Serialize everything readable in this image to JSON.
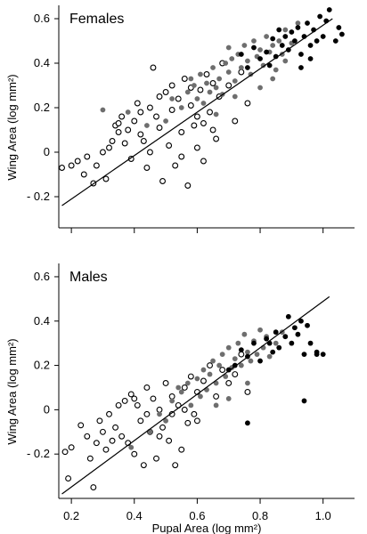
{
  "chart_data": [
    {
      "type": "scatter",
      "title": "Females",
      "ylabel": "Wing Area (log mm²)",
      "xlim": [
        0.16,
        1.1
      ],
      "ylim": [
        -0.34,
        0.66
      ],
      "x_ticks": [
        0.2,
        0.4,
        0.6,
        0.8,
        1.0
      ],
      "x_tick_labels": [
        "",
        "",
        "",
        "",
        ""
      ],
      "y_ticks": [
        -0.2,
        0,
        0.2,
        0.4,
        0.6
      ],
      "y_tick_labels": [
        "- 0.2",
        "0",
        "0.2",
        "0.4",
        "0.6"
      ],
      "grid": false,
      "fit_line": {
        "x": [
          0.17,
          1.03
        ],
        "y": [
          -0.24,
          0.6
        ]
      },
      "series": [
        {
          "marker": "open-circle",
          "color": "#000000",
          "points": [
            [
              0.17,
              -0.07
            ],
            [
              0.2,
              -0.06
            ],
            [
              0.22,
              -0.04
            ],
            [
              0.24,
              -0.1
            ],
            [
              0.25,
              -0.02
            ],
            [
              0.27,
              -0.14
            ],
            [
              0.28,
              -0.06
            ],
            [
              0.3,
              0.0
            ],
            [
              0.31,
              -0.12
            ],
            [
              0.32,
              0.02
            ],
            [
              0.33,
              0.05
            ],
            [
              0.34,
              0.12
            ],
            [
              0.35,
              0.09
            ],
            [
              0.36,
              0.16
            ],
            [
              0.37,
              0.04
            ],
            [
              0.38,
              0.1
            ],
            [
              0.39,
              -0.03
            ],
            [
              0.4,
              0.14
            ],
            [
              0.41,
              0.22
            ],
            [
              0.42,
              0.08
            ],
            [
              0.43,
              0.05
            ],
            [
              0.44,
              -0.07
            ],
            [
              0.45,
              0.2
            ],
            [
              0.46,
              0.38
            ],
            [
              0.47,
              0.16
            ],
            [
              0.48,
              0.11
            ],
            [
              0.49,
              -0.13
            ],
            [
              0.5,
              0.27
            ],
            [
              0.51,
              0.03
            ],
            [
              0.52,
              0.19
            ],
            [
              0.53,
              -0.06
            ],
            [
              0.54,
              0.24
            ],
            [
              0.55,
              0.09
            ],
            [
              0.56,
              0.33
            ],
            [
              0.57,
              -0.15
            ],
            [
              0.58,
              0.21
            ],
            [
              0.59,
              0.12
            ],
            [
              0.6,
              0.02
            ],
            [
              0.61,
              0.28
            ],
            [
              0.62,
              -0.04
            ],
            [
              0.63,
              0.35
            ],
            [
              0.64,
              0.18
            ],
            [
              0.65,
              0.1
            ],
            [
              0.66,
              0.06
            ],
            [
              0.67,
              0.25
            ],
            [
              0.68,
              0.4
            ],
            [
              0.7,
              0.3
            ],
            [
              0.72,
              0.14
            ],
            [
              0.74,
              0.36
            ],
            [
              0.76,
              0.22
            ],
            [
              0.45,
              0.0
            ],
            [
              0.48,
              0.25
            ],
            [
              0.52,
              0.3
            ],
            [
              0.55,
              -0.02
            ],
            [
              0.58,
              0.29
            ],
            [
              0.6,
              0.16
            ],
            [
              0.62,
              0.13
            ],
            [
              0.65,
              0.31
            ],
            [
              0.35,
              0.13
            ],
            [
              0.42,
              0.18
            ]
          ]
        },
        {
          "marker": "filled-circle",
          "color": "#6e6e6e",
          "points": [
            [
              0.3,
              0.19
            ],
            [
              0.38,
              0.18
            ],
            [
              0.44,
              0.12
            ],
            [
              0.5,
              0.14
            ],
            [
              0.52,
              0.24
            ],
            [
              0.55,
              0.2
            ],
            [
              0.57,
              0.27
            ],
            [
              0.59,
              0.3
            ],
            [
              0.6,
              0.24
            ],
            [
              0.61,
              0.35
            ],
            [
              0.62,
              0.22
            ],
            [
              0.63,
              0.31
            ],
            [
              0.64,
              0.27
            ],
            [
              0.65,
              0.38
            ],
            [
              0.66,
              0.29
            ],
            [
              0.67,
              0.33
            ],
            [
              0.68,
              0.26
            ],
            [
              0.69,
              0.4
            ],
            [
              0.7,
              0.36
            ],
            [
              0.71,
              0.42
            ],
            [
              0.72,
              0.32
            ],
            [
              0.73,
              0.44
            ],
            [
              0.74,
              0.38
            ],
            [
              0.75,
              0.48
            ],
            [
              0.76,
              0.41
            ],
            [
              0.77,
              0.35
            ],
            [
              0.78,
              0.5
            ],
            [
              0.79,
              0.43
            ],
            [
              0.8,
              0.46
            ],
            [
              0.81,
              0.39
            ],
            [
              0.82,
              0.52
            ],
            [
              0.83,
              0.45
            ],
            [
              0.84,
              0.48
            ],
            [
              0.85,
              0.37
            ],
            [
              0.86,
              0.5
            ],
            [
              0.87,
              0.44
            ],
            [
              0.88,
              0.55
            ],
            [
              0.9,
              0.49
            ],
            [
              0.92,
              0.58
            ],
            [
              0.8,
              0.29
            ],
            [
              0.72,
              0.25
            ],
            [
              0.66,
              0.17
            ],
            [
              0.84,
              0.33
            ],
            [
              0.88,
              0.41
            ],
            [
              0.7,
              0.47
            ],
            [
              0.58,
              0.33
            ]
          ]
        },
        {
          "marker": "filled-circle",
          "color": "#000000",
          "points": [
            [
              0.74,
              0.44
            ],
            [
              0.76,
              0.38
            ],
            [
              0.78,
              0.47
            ],
            [
              0.8,
              0.42
            ],
            [
              0.82,
              0.45
            ],
            [
              0.84,
              0.51
            ],
            [
              0.85,
              0.43
            ],
            [
              0.86,
              0.55
            ],
            [
              0.87,
              0.48
            ],
            [
              0.88,
              0.52
            ],
            [
              0.89,
              0.46
            ],
            [
              0.9,
              0.54
            ],
            [
              0.91,
              0.5
            ],
            [
              0.92,
              0.56
            ],
            [
              0.93,
              0.44
            ],
            [
              0.94,
              0.52
            ],
            [
              0.95,
              0.58
            ],
            [
              0.96,
              0.48
            ],
            [
              0.97,
              0.55
            ],
            [
              0.98,
              0.5
            ],
            [
              0.99,
              0.61
            ],
            [
              1.0,
              0.52
            ],
            [
              1.02,
              0.64
            ],
            [
              1.04,
              0.5
            ],
            [
              1.05,
              0.56
            ],
            [
              1.06,
              0.53
            ],
            [
              0.93,
              0.38
            ],
            [
              0.96,
              0.42
            ],
            [
              1.01,
              0.59
            ],
            [
              0.83,
              0.39
            ]
          ]
        }
      ]
    },
    {
      "type": "scatter",
      "title": "Males",
      "xlabel": "Pupal Area (log mm²)",
      "ylabel": "Wing Area (log mm²)",
      "xlim": [
        0.16,
        1.1
      ],
      "ylim": [
        -0.4,
        0.66
      ],
      "x_ticks": [
        0.2,
        0.4,
        0.6,
        0.8,
        1.0
      ],
      "x_tick_labels": [
        "0.2",
        "0.4",
        "0.6",
        "0.8",
        "1.0"
      ],
      "y_ticks": [
        -0.2,
        0,
        0.2,
        0.4,
        0.6
      ],
      "y_tick_labels": [
        "- 0.2",
        "0",
        "0.2",
        "0.4",
        "0.6"
      ],
      "grid": false,
      "fit_line": {
        "x": [
          0.17,
          1.02
        ],
        "y": [
          -0.38,
          0.51
        ]
      },
      "series": [
        {
          "marker": "open-circle",
          "color": "#000000",
          "points": [
            [
              0.18,
              -0.19
            ],
            [
              0.19,
              -0.31
            ],
            [
              0.2,
              -0.17
            ],
            [
              0.23,
              -0.07
            ],
            [
              0.25,
              -0.12
            ],
            [
              0.26,
              -0.22
            ],
            [
              0.27,
              -0.35
            ],
            [
              0.28,
              -0.15
            ],
            [
              0.29,
              -0.05
            ],
            [
              0.3,
              -0.1
            ],
            [
              0.31,
              -0.18
            ],
            [
              0.32,
              -0.02
            ],
            [
              0.33,
              -0.14
            ],
            [
              0.34,
              -0.08
            ],
            [
              0.35,
              0.02
            ],
            [
              0.36,
              -0.12
            ],
            [
              0.37,
              0.04
            ],
            [
              0.38,
              -0.15
            ],
            [
              0.39,
              0.07
            ],
            [
              0.4,
              -0.2
            ],
            [
              0.41,
              0.02
            ],
            [
              0.42,
              -0.05
            ],
            [
              0.43,
              -0.25
            ],
            [
              0.44,
              0.1
            ],
            [
              0.45,
              -0.1
            ],
            [
              0.46,
              0.05
            ],
            [
              0.47,
              -0.22
            ],
            [
              0.48,
              0.0
            ],
            [
              0.49,
              -0.08
            ],
            [
              0.5,
              0.12
            ],
            [
              0.51,
              -0.14
            ],
            [
              0.52,
              0.06
            ],
            [
              0.53,
              -0.25
            ],
            [
              0.54,
              0.02
            ],
            [
              0.55,
              -0.18
            ],
            [
              0.56,
              0.1
            ],
            [
              0.57,
              -0.06
            ],
            [
              0.58,
              0.15
            ],
            [
              0.59,
              -0.02
            ],
            [
              0.6,
              0.08
            ],
            [
              0.62,
              0.13
            ],
            [
              0.64,
              0.2
            ],
            [
              0.66,
              0.06
            ],
            [
              0.68,
              0.18
            ],
            [
              0.7,
              0.12
            ],
            [
              0.72,
              0.16
            ],
            [
              0.74,
              0.25
            ],
            [
              0.76,
              0.08
            ],
            [
              0.4,
              0.05
            ],
            [
              0.44,
              -0.02
            ],
            [
              0.48,
              -0.12
            ],
            [
              0.52,
              -0.02
            ],
            [
              0.56,
              0.0
            ],
            [
              0.6,
              -0.05
            ]
          ]
        },
        {
          "marker": "filled-circle",
          "color": "#6e6e6e",
          "points": [
            [
              0.39,
              -0.17
            ],
            [
              0.45,
              -0.1
            ],
            [
              0.5,
              -0.05
            ],
            [
              0.52,
              0.04
            ],
            [
              0.55,
              0.08
            ],
            [
              0.57,
              0.12
            ],
            [
              0.58,
              0.02
            ],
            [
              0.6,
              0.14
            ],
            [
              0.61,
              0.06
            ],
            [
              0.62,
              0.18
            ],
            [
              0.63,
              0.09
            ],
            [
              0.64,
              0.16
            ],
            [
              0.65,
              0.22
            ],
            [
              0.66,
              0.12
            ],
            [
              0.67,
              0.2
            ],
            [
              0.68,
              0.25
            ],
            [
              0.69,
              0.15
            ],
            [
              0.7,
              0.28
            ],
            [
              0.71,
              0.19
            ],
            [
              0.72,
              0.23
            ],
            [
              0.73,
              0.3
            ],
            [
              0.74,
              0.2
            ],
            [
              0.75,
              0.34
            ],
            [
              0.76,
              0.26
            ],
            [
              0.77,
              0.22
            ],
            [
              0.78,
              0.31
            ],
            [
              0.79,
              0.25
            ],
            [
              0.8,
              0.36
            ],
            [
              0.81,
              0.28
            ],
            [
              0.82,
              0.33
            ],
            [
              0.83,
              0.24
            ],
            [
              0.85,
              0.3
            ],
            [
              0.87,
              0.35
            ],
            [
              0.66,
              0.02
            ],
            [
              0.7,
              0.05
            ],
            [
              0.48,
              -0.02
            ],
            [
              0.54,
              0.1
            ],
            [
              0.76,
              0.12
            ]
          ]
        },
        {
          "marker": "filled-circle",
          "color": "#000000",
          "points": [
            [
              0.7,
              0.18
            ],
            [
              0.72,
              0.2
            ],
            [
              0.74,
              0.27
            ],
            [
              0.76,
              0.24
            ],
            [
              0.78,
              0.3
            ],
            [
              0.8,
              0.22
            ],
            [
              0.82,
              0.32
            ],
            [
              0.84,
              0.26
            ],
            [
              0.85,
              0.35
            ],
            [
              0.86,
              0.28
            ],
            [
              0.88,
              0.33
            ],
            [
              0.89,
              0.42
            ],
            [
              0.9,
              0.3
            ],
            [
              0.91,
              0.37
            ],
            [
              0.92,
              0.34
            ],
            [
              0.93,
              0.4
            ],
            [
              0.94,
              0.25
            ],
            [
              0.95,
              0.38
            ],
            [
              0.96,
              0.3
            ],
            [
              0.98,
              0.25
            ],
            [
              1.0,
              0.25
            ],
            [
              0.94,
              0.04
            ],
            [
              0.76,
              -0.06
            ],
            [
              0.98,
              0.26
            ],
            [
              0.83,
              0.3
            ]
          ]
        }
      ]
    }
  ]
}
